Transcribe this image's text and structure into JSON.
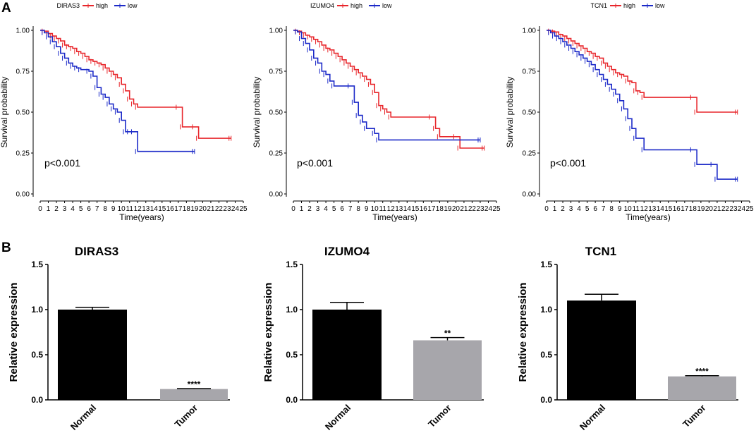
{
  "panels": {
    "a": "A",
    "b": "B"
  },
  "colors": {
    "high": "#e8262b",
    "low": "#1c2ac8",
    "normal": "#000000",
    "tumor": "#a7a6ab"
  },
  "chart_data": [
    {
      "type": "line",
      "subtype": "kaplan-meier",
      "gene": "DIRAS3",
      "legend": {
        "high": "high",
        "low": "low"
      },
      "xlabel": "Time(years)",
      "ylabel": "Survival probability",
      "xticks": [
        "0",
        "1",
        "2",
        "3",
        "4",
        "5",
        "6",
        "7",
        "8",
        "9",
        "10",
        "11",
        "12",
        "13",
        "14",
        "15",
        "16",
        "17",
        "18",
        "19",
        "20",
        "21",
        "22",
        "23",
        "24",
        "25"
      ],
      "yticks": [
        "0.00",
        "0.25",
        "0.50",
        "0.75",
        "1.00"
      ],
      "xlim": [
        0,
        25
      ],
      "ylim": [
        0,
        1
      ],
      "pvalue": "p<0.001",
      "series": [
        {
          "name": "high",
          "points": [
            [
              0,
              1
            ],
            [
              0.5,
              0.995
            ],
            [
              1,
              0.98
            ],
            [
              1.5,
              0.965
            ],
            [
              2,
              0.95
            ],
            [
              2.5,
              0.935
            ],
            [
              3,
              0.91
            ],
            [
              3.5,
              0.9
            ],
            [
              4,
              0.89
            ],
            [
              4.5,
              0.87
            ],
            [
              5,
              0.86
            ],
            [
              5.5,
              0.84
            ],
            [
              6,
              0.82
            ],
            [
              6.5,
              0.81
            ],
            [
              7,
              0.8
            ],
            [
              7.5,
              0.79
            ],
            [
              8,
              0.77
            ],
            [
              8.5,
              0.75
            ],
            [
              9,
              0.73
            ],
            [
              9.5,
              0.71
            ],
            [
              10,
              0.67
            ],
            [
              10.5,
              0.63
            ],
            [
              11,
              0.58
            ],
            [
              11.5,
              0.55
            ],
            [
              12,
              0.53
            ],
            [
              17,
              0.53
            ],
            [
              17.5,
              0.41
            ],
            [
              19,
              0.41
            ],
            [
              19.5,
              0.34
            ],
            [
              23.5,
              0.34
            ]
          ]
        },
        {
          "name": "low",
          "points": [
            [
              0,
              1
            ],
            [
              0.5,
              0.985
            ],
            [
              1,
              0.96
            ],
            [
              1.5,
              0.93
            ],
            [
              2,
              0.9
            ],
            [
              2.5,
              0.86
            ],
            [
              3,
              0.83
            ],
            [
              3.5,
              0.8
            ],
            [
              4,
              0.78
            ],
            [
              4.5,
              0.77
            ],
            [
              5,
              0.76
            ],
            [
              6,
              0.75
            ],
            [
              6.5,
              0.72
            ],
            [
              7,
              0.65
            ],
            [
              7.5,
              0.61
            ],
            [
              8,
              0.59
            ],
            [
              8.5,
              0.55
            ],
            [
              9,
              0.52
            ],
            [
              9.5,
              0.5
            ],
            [
              10,
              0.45
            ],
            [
              10.5,
              0.38
            ],
            [
              11,
              0.38
            ],
            [
              11.5,
              0.38
            ],
            [
              12,
              0.26
            ],
            [
              19,
              0.26
            ]
          ]
        }
      ]
    },
    {
      "type": "line",
      "subtype": "kaplan-meier",
      "gene": "IZUMO4",
      "legend": {
        "high": "high",
        "low": "low"
      },
      "xlabel": "Time(years)",
      "ylabel": "Survival probability",
      "xticks": [
        "0",
        "1",
        "2",
        "3",
        "4",
        "5",
        "6",
        "7",
        "8",
        "9",
        "10",
        "11",
        "12",
        "13",
        "14",
        "15",
        "16",
        "17",
        "18",
        "19",
        "20",
        "21",
        "22",
        "23",
        "24",
        "25"
      ],
      "yticks": [
        "0.00",
        "0.25",
        "0.50",
        "0.75",
        "1.00"
      ],
      "xlim": [
        0,
        25
      ],
      "ylim": [
        0,
        1
      ],
      "pvalue": "p<0.001",
      "series": [
        {
          "name": "high",
          "points": [
            [
              0,
              1
            ],
            [
              0.5,
              0.995
            ],
            [
              1,
              0.985
            ],
            [
              1.5,
              0.97
            ],
            [
              2,
              0.96
            ],
            [
              2.5,
              0.945
            ],
            [
              3,
              0.93
            ],
            [
              3.5,
              0.91
            ],
            [
              4,
              0.89
            ],
            [
              4.5,
              0.88
            ],
            [
              5,
              0.86
            ],
            [
              5.5,
              0.84
            ],
            [
              6,
              0.82
            ],
            [
              6.5,
              0.8
            ],
            [
              7,
              0.78
            ],
            [
              7.5,
              0.76
            ],
            [
              8,
              0.74
            ],
            [
              8.5,
              0.72
            ],
            [
              9,
              0.7
            ],
            [
              9.5,
              0.67
            ],
            [
              10,
              0.62
            ],
            [
              10.5,
              0.54
            ],
            [
              11,
              0.52
            ],
            [
              11.5,
              0.5
            ],
            [
              12,
              0.47
            ],
            [
              17,
              0.47
            ],
            [
              17.5,
              0.4
            ],
            [
              18,
              0.35
            ],
            [
              20,
              0.35
            ],
            [
              20.5,
              0.28
            ],
            [
              23.5,
              0.28
            ]
          ]
        },
        {
          "name": "low",
          "points": [
            [
              0,
              1
            ],
            [
              0.5,
              0.99
            ],
            [
              1,
              0.95
            ],
            [
              1.5,
              0.92
            ],
            [
              2,
              0.88
            ],
            [
              2.5,
              0.83
            ],
            [
              3,
              0.8
            ],
            [
              3.5,
              0.75
            ],
            [
              4,
              0.73
            ],
            [
              4.5,
              0.69
            ],
            [
              5,
              0.66
            ],
            [
              7,
              0.66
            ],
            [
              7.5,
              0.56
            ],
            [
              8,
              0.48
            ],
            [
              8.5,
              0.44
            ],
            [
              9,
              0.4
            ],
            [
              10,
              0.37
            ],
            [
              10.5,
              0.33
            ],
            [
              23,
              0.33
            ]
          ]
        }
      ]
    },
    {
      "type": "line",
      "subtype": "kaplan-meier",
      "gene": "TCN1",
      "legend": {
        "high": "high",
        "low": "low"
      },
      "xlabel": "Time(years)",
      "ylabel": "Survival probability",
      "xticks": [
        "0",
        "1",
        "2",
        "3",
        "4",
        "5",
        "6",
        "7",
        "8",
        "9",
        "10",
        "11",
        "12",
        "13",
        "14",
        "15",
        "16",
        "17",
        "18",
        "19",
        "20",
        "21",
        "22",
        "23",
        "24",
        "25"
      ],
      "yticks": [
        "0.00",
        "0.25",
        "0.50",
        "0.75",
        "1.00"
      ],
      "xlim": [
        0,
        25
      ],
      "ylim": [
        0,
        1
      ],
      "pvalue": "p<0.001",
      "series": [
        {
          "name": "high",
          "points": [
            [
              0,
              1
            ],
            [
              0.5,
              0.995
            ],
            [
              1,
              0.99
            ],
            [
              1.5,
              0.975
            ],
            [
              2,
              0.965
            ],
            [
              2.5,
              0.95
            ],
            [
              3,
              0.935
            ],
            [
              3.5,
              0.92
            ],
            [
              4,
              0.905
            ],
            [
              4.5,
              0.89
            ],
            [
              5,
              0.87
            ],
            [
              5.5,
              0.86
            ],
            [
              6,
              0.84
            ],
            [
              6.5,
              0.83
            ],
            [
              7,
              0.8
            ],
            [
              7.5,
              0.78
            ],
            [
              8,
              0.76
            ],
            [
              8.5,
              0.74
            ],
            [
              9,
              0.73
            ],
            [
              9.5,
              0.72
            ],
            [
              10,
              0.69
            ],
            [
              10.5,
              0.68
            ],
            [
              11,
              0.63
            ],
            [
              11.5,
              0.62
            ],
            [
              12,
              0.59
            ],
            [
              18,
              0.59
            ],
            [
              18.5,
              0.5
            ],
            [
              23.5,
              0.5
            ]
          ]
        },
        {
          "name": "low",
          "points": [
            [
              0,
              1
            ],
            [
              0.5,
              0.985
            ],
            [
              1,
              0.965
            ],
            [
              1.5,
              0.95
            ],
            [
              2,
              0.93
            ],
            [
              2.5,
              0.91
            ],
            [
              3,
              0.89
            ],
            [
              3.5,
              0.87
            ],
            [
              4,
              0.85
            ],
            [
              4.5,
              0.83
            ],
            [
              5,
              0.81
            ],
            [
              5.5,
              0.79
            ],
            [
              6,
              0.76
            ],
            [
              6.5,
              0.73
            ],
            [
              7,
              0.7
            ],
            [
              7.5,
              0.67
            ],
            [
              8,
              0.64
            ],
            [
              8.5,
              0.61
            ],
            [
              9,
              0.57
            ],
            [
              9.5,
              0.52
            ],
            [
              10,
              0.46
            ],
            [
              10.5,
              0.4
            ],
            [
              11,
              0.34
            ],
            [
              12,
              0.27
            ],
            [
              18,
              0.27
            ],
            [
              18.5,
              0.18
            ],
            [
              20.5,
              0.18
            ],
            [
              21,
              0.09
            ],
            [
              23.5,
              0.09
            ]
          ]
        }
      ]
    },
    {
      "type": "bar",
      "title": "DIRAS3",
      "categories": [
        "Normal",
        "Tumor"
      ],
      "values": [
        1.0,
        0.12
      ],
      "errors": [
        0.025,
        0.005
      ],
      "significance": [
        "",
        "****"
      ],
      "ylabel": "Relative expression",
      "ylim": [
        0,
        1.5
      ],
      "yticks": [
        "0.0",
        "0.5",
        "1.0",
        "1.5"
      ]
    },
    {
      "type": "bar",
      "title": "IZUMO4",
      "categories": [
        "Normal",
        "Tumor"
      ],
      "values": [
        1.0,
        0.66
      ],
      "errors": [
        0.08,
        0.03
      ],
      "significance": [
        "",
        "**"
      ],
      "ylabel": "Relative expression",
      "ylim": [
        0,
        1.5
      ],
      "yticks": [
        "0.0",
        "0.5",
        "1.0",
        "1.5"
      ]
    },
    {
      "type": "bar",
      "title": "TCN1",
      "categories": [
        "Normal",
        "Tumor"
      ],
      "values": [
        1.1,
        0.26
      ],
      "errors": [
        0.07,
        0.008
      ],
      "significance": [
        "",
        "****"
      ],
      "ylabel": "Relative expression",
      "ylim": [
        0,
        1.5
      ],
      "yticks": [
        "0.0",
        "0.5",
        "1.0",
        "1.5"
      ]
    }
  ]
}
